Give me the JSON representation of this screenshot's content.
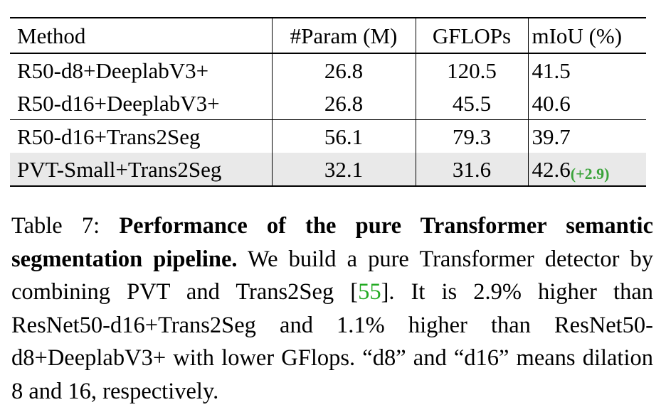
{
  "table": {
    "headers": [
      "Method",
      "#Param (M)",
      "GFLOPs",
      "mIoU (%)"
    ],
    "rows": [
      {
        "method": "R50-d8+DeeplabV3+",
        "param": "26.8",
        "gflops": "120.5",
        "miou": "41.5",
        "delta": ""
      },
      {
        "method": "R50-d16+DeeplabV3+",
        "param": "26.8",
        "gflops": "45.5",
        "miou": "40.6",
        "delta": ""
      },
      {
        "method": "R50-d16+Trans2Seg",
        "param": "56.1",
        "gflops": "79.3",
        "miou": "39.7",
        "delta": ""
      },
      {
        "method": "PVT-Small+Trans2Seg",
        "param": "32.1",
        "gflops": "31.6",
        "miou": "42.6",
        "delta": "(+2.9)"
      }
    ]
  },
  "caption": {
    "label": "Table 7: ",
    "bold_text": "Performance of the pure Transformer semantic segmentation pipeline.",
    "text_before_cite": "  We build a pure Transformer detector by combining PVT and Trans2Seg [",
    "cite": "55",
    "text_after_cite": "].  It is 2.9% higher than ResNet50-d16+Trans2Seg and 1.1% higher than ResNet50-d8+DeeplabV3+ with lower GFlops.  “d8” and “d16” means dilation 8 and 16, respectively."
  }
}
